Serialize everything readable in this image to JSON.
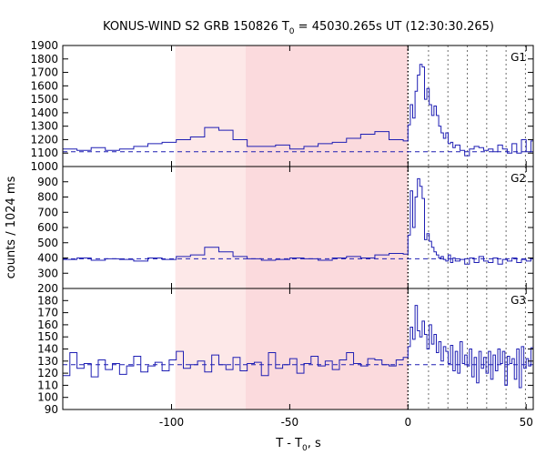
{
  "chart_data": {
    "type": "line",
    "title": {
      "prefix": "KONUS-WIND S2 GRB 150826 T",
      "sub": "0",
      "suffix": " = 45030.265s UT (12:30:30.265)"
    },
    "xlabel": {
      "prefix": "T - T",
      "sub": "0",
      "suffix": ", s"
    },
    "ylabel": "counts / 1024 ms",
    "xlim": [
      -146,
      53
    ],
    "xticks": [
      -100,
      -50,
      0,
      50
    ],
    "xtick_labels": [
      "-100",
      "-50",
      "0",
      "50"
    ],
    "shaded_regions": [
      {
        "x0": -98.4,
        "x1": -68.7,
        "color": "#fde8e8"
      },
      {
        "x0": -68.7,
        "x1": 0,
        "color": "#fbdadd"
      }
    ],
    "vertical_markers": {
      "t0_dotted": 0,
      "dashed_gray": [
        8.7,
        16.9,
        25.1,
        33.3,
        41.5,
        49.7
      ]
    },
    "panels": [
      {
        "name": "G1",
        "ylim": [
          1000,
          1900
        ],
        "yticks": [
          1000,
          1100,
          1200,
          1300,
          1400,
          1500,
          1600,
          1700,
          1800,
          1900
        ],
        "ytick_labels": [
          "1000",
          "1100",
          "1200",
          "1300",
          "1400",
          "1500",
          "1600",
          "1700",
          "1800",
          "1900"
        ],
        "background": 1110,
        "series": {
          "name": "G1",
          "x": [
            -146,
            -140,
            -134,
            -128,
            -122,
            -116,
            -110,
            -104,
            -98,
            -92,
            -86,
            -80,
            -74,
            -68,
            -62,
            -56,
            -50,
            -44,
            -38,
            -32,
            -26,
            -20,
            -14,
            -8,
            -2,
            0,
            1,
            2,
            3,
            4,
            5,
            6,
            7,
            8,
            9,
            10,
            11,
            12,
            13,
            14,
            15,
            16,
            17,
            18,
            19,
            20,
            22,
            24,
            26,
            28,
            30,
            32,
            34,
            36,
            38,
            40,
            42,
            44,
            46,
            48,
            50,
            52
          ],
          "y": [
            1130,
            1120,
            1140,
            1120,
            1130,
            1150,
            1170,
            1180,
            1200,
            1220,
            1290,
            1270,
            1200,
            1150,
            1150,
            1160,
            1130,
            1150,
            1170,
            1180,
            1210,
            1240,
            1260,
            1200,
            1190,
            1310,
            1460,
            1360,
            1560,
            1680,
            1760,
            1740,
            1500,
            1580,
            1460,
            1380,
            1450,
            1380,
            1300,
            1250,
            1210,
            1250,
            1170,
            1180,
            1140,
            1160,
            1120,
            1080,
            1130,
            1150,
            1140,
            1120,
            1130,
            1110,
            1160,
            1130,
            1100,
            1170,
            1100,
            1200,
            1110,
            1190
          ]
        }
      },
      {
        "name": "G2",
        "ylim": [
          200,
          1000
        ],
        "yticks": [
          200,
          300,
          400,
          500,
          600,
          700,
          800,
          900
        ],
        "ytick_labels": [
          "200",
          "300",
          "400",
          "500",
          "600",
          "700",
          "800",
          "900"
        ],
        "background": 395,
        "series": {
          "name": "G2",
          "x": [
            -146,
            -140,
            -134,
            -128,
            -122,
            -116,
            -110,
            -104,
            -98,
            -92,
            -86,
            -80,
            -74,
            -68,
            -62,
            -56,
            -50,
            -44,
            -38,
            -32,
            -26,
            -20,
            -14,
            -8,
            -2,
            0,
            1,
            2,
            3,
            4,
            5,
            6,
            7,
            8,
            9,
            10,
            11,
            12,
            13,
            14,
            15,
            16,
            17,
            18,
            19,
            20,
            22,
            24,
            26,
            28,
            30,
            32,
            34,
            36,
            38,
            40,
            42,
            44,
            46,
            48,
            50,
            52
          ],
          "y": [
            390,
            400,
            385,
            395,
            390,
            380,
            400,
            390,
            410,
            420,
            470,
            440,
            410,
            395,
            385,
            390,
            400,
            395,
            385,
            400,
            410,
            400,
            420,
            430,
            425,
            550,
            840,
            600,
            800,
            920,
            870,
            790,
            520,
            560,
            510,
            470,
            440,
            420,
            400,
            410,
            390,
            380,
            420,
            370,
            400,
            380,
            390,
            360,
            400,
            370,
            410,
            380,
            370,
            400,
            360,
            390,
            380,
            400,
            370,
            390,
            380,
            395
          ]
        }
      },
      {
        "name": "G3",
        "ylim": [
          90,
          190
        ],
        "yticks": [
          90,
          100,
          110,
          120,
          130,
          140,
          150,
          160,
          170,
          180
        ],
        "ytick_labels": [
          "90",
          "100",
          "110",
          "120",
          "130",
          "140",
          "150",
          "160",
          "170",
          "180"
        ],
        "background": 127,
        "series": {
          "name": "G3",
          "x": [
            -146,
            -143,
            -140,
            -137,
            -134,
            -131,
            -128,
            -125,
            -122,
            -119,
            -116,
            -113,
            -110,
            -107,
            -104,
            -101,
            -98,
            -95,
            -92,
            -89,
            -86,
            -83,
            -80,
            -77,
            -74,
            -71,
            -68,
            -65,
            -62,
            -59,
            -56,
            -53,
            -50,
            -47,
            -44,
            -41,
            -38,
            -35,
            -32,
            -29,
            -26,
            -23,
            -20,
            -17,
            -14,
            -11,
            -8,
            -5,
            -2,
            0,
            1,
            2,
            3,
            4,
            5,
            6,
            7,
            8,
            9,
            10,
            11,
            12,
            13,
            14,
            15,
            16,
            17,
            18,
            19,
            20,
            21,
            22,
            23,
            24,
            25,
            26,
            27,
            28,
            29,
            30,
            31,
            32,
            33,
            34,
            35,
            36,
            37,
            38,
            39,
            40,
            41,
            42,
            43,
            44,
            45,
            46,
            47,
            48,
            49,
            50,
            51,
            52
          ],
          "y": [
            118,
            137,
            124,
            128,
            117,
            131,
            123,
            128,
            119,
            126,
            134,
            121,
            126,
            129,
            122,
            131,
            138,
            124,
            127,
            130,
            121,
            135,
            127,
            123,
            133,
            122,
            128,
            129,
            118,
            137,
            124,
            127,
            132,
            120,
            128,
            134,
            126,
            130,
            123,
            131,
            137,
            128,
            126,
            132,
            131,
            127,
            126,
            131,
            133,
            142,
            158,
            148,
            176,
            155,
            150,
            163,
            152,
            140,
            160,
            144,
            152,
            137,
            146,
            130,
            142,
            138,
            128,
            143,
            122,
            138,
            120,
            146,
            128,
            135,
            126,
            140,
            117,
            133,
            112,
            138,
            124,
            133,
            120,
            138,
            115,
            135,
            122,
            140,
            128,
            138,
            110,
            134,
            128,
            132,
            115,
            140,
            108,
            142,
            124,
            132,
            126,
            141
          ]
        }
      }
    ]
  }
}
